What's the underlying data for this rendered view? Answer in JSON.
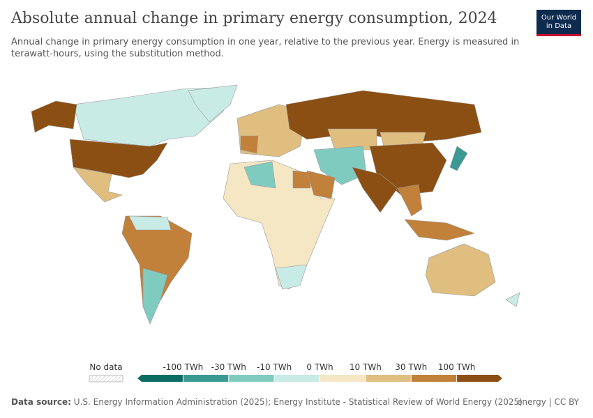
{
  "header": {
    "title": "Absolute annual change in primary energy consumption, 2024",
    "subtitle": "Annual change in primary energy consumption in one year, relative to the previous year. Energy is measured in terawatt-hours, using the substitution method.",
    "logo": [
      "Our World",
      "in Data"
    ]
  },
  "legend": {
    "no_data": "No data",
    "ticks": [
      "-100 TWh",
      "-30 TWh",
      "-10 TWh",
      "0 TWh",
      "10 TWh",
      "30 TWh",
      "100 TWh"
    ],
    "colors": [
      "#0b6c63",
      "#3a9a93",
      "#80cbc0",
      "#c9ebe5",
      "#f5e6c4",
      "#dfbe80",
      "#c1813a",
      "#8c4f13"
    ]
  },
  "footer": {
    "source_label": "Data source:",
    "source": "U.S. Energy Information Administration (2025); Energy Institute - Statistical Review of World Energy (2025)",
    "tags": "energy | CC BY"
  }
}
